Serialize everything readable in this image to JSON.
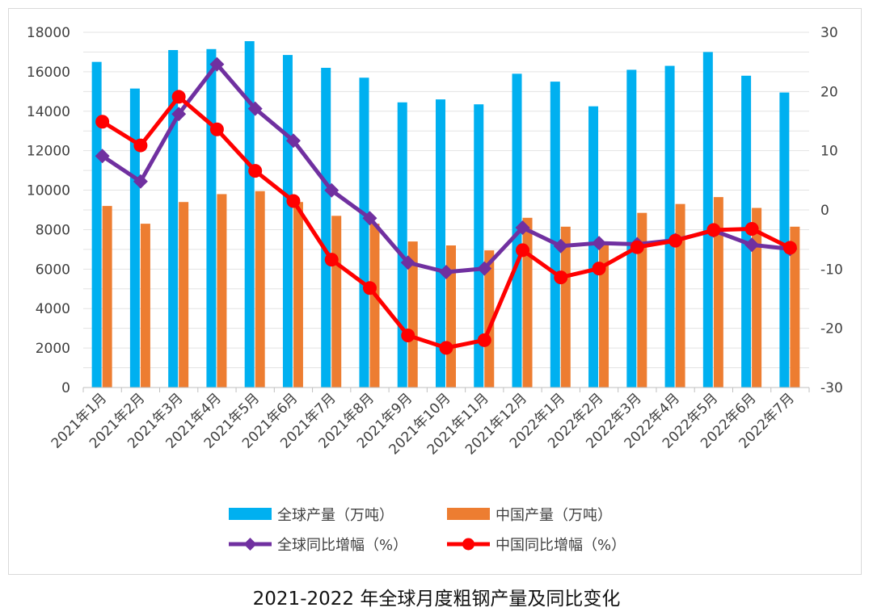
{
  "chart_data": {
    "type": "bar+line",
    "categories": [
      "2021年1月",
      "2021年2月",
      "2021年3月",
      "2021年4月",
      "2021年5月",
      "2021年6月",
      "2021年7月",
      "2021年8月",
      "2021年9月",
      "2021年10月",
      "2021年11月",
      "2021年12月",
      "2022年1月",
      "2022年2月",
      "2022年3月",
      "2022年4月",
      "2022年5月",
      "2022年6月",
      "2022年7月"
    ],
    "series": [
      {
        "name": "全球产量（万吨）",
        "kind": "bar",
        "axis": "left",
        "color": "#00b0f0",
        "values": [
          16500,
          15150,
          17100,
          17150,
          17550,
          16850,
          16200,
          15700,
          14450,
          14600,
          14350,
          15900,
          15500,
          14250,
          16100,
          16300,
          17000,
          15800,
          14950
        ]
      },
      {
        "name": "中国产量（万吨）",
        "kind": "bar",
        "axis": "left",
        "color": "#ed7d31",
        "values": [
          9200,
          8300,
          9400,
          9800,
          9950,
          9400,
          8700,
          8300,
          7400,
          7200,
          6950,
          8600,
          8150,
          7300,
          8850,
          9300,
          9650,
          9100,
          8150
        ]
      },
      {
        "name": "全球同比增幅（%）",
        "kind": "line",
        "axis": "right",
        "color": "#7030a0",
        "marker": "diamond",
        "values": [
          9.1,
          4.8,
          16.2,
          24.6,
          17.1,
          11.7,
          3.3,
          -1.4,
          -8.9,
          -10.5,
          -9.9,
          -3.0,
          -6.1,
          -5.6,
          -5.8,
          -5.1,
          -3.5,
          -5.9,
          -6.6
        ]
      },
      {
        "name": "中国同比增幅（%）",
        "kind": "line",
        "axis": "right",
        "color": "#ff0000",
        "marker": "circle",
        "values": [
          14.9,
          10.9,
          19.1,
          13.6,
          6.6,
          1.5,
          -8.4,
          -13.2,
          -21.2,
          -23.3,
          -22.0,
          -6.8,
          -11.4,
          -9.9,
          -6.3,
          -5.2,
          -3.4,
          -3.2,
          -6.4
        ]
      }
    ],
    "y_left": {
      "min": 0,
      "max": 18000,
      "ticks": [
        0,
        2000,
        4000,
        6000,
        8000,
        10000,
        12000,
        14000,
        16000,
        18000
      ]
    },
    "y_right": {
      "min": -30,
      "max": 30,
      "ticks": [
        -30,
        -20,
        -10,
        0,
        10,
        20,
        30
      ]
    },
    "grid": true,
    "legend_position": "bottom"
  },
  "caption": "2021-2022 年全球月度粗钢产量及同比变化"
}
